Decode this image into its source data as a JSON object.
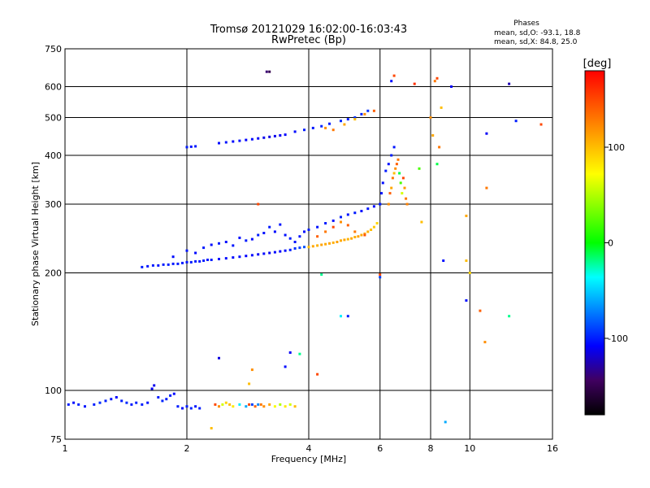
{
  "chart_data": {
    "type": "scatter",
    "title": "Tromsø 20121029 16:02:00-16:03:43",
    "subtitle": "RwPretec (Bp)",
    "xlabel": "Frequency [MHz]",
    "ylabel": "Stationary phase Virtual Height [km]",
    "x_scale": "log",
    "y_scale": "log",
    "xlim": [
      1,
      16
    ],
    "ylim": [
      75,
      750
    ],
    "x_ticks": [
      "1",
      "2",
      "4",
      "6",
      "8",
      "10",
      "16"
    ],
    "y_ticks": [
      "75",
      "100",
      "200",
      "300",
      "400",
      "500",
      "600",
      "750"
    ],
    "grid": true,
    "stats": {
      "heading": "Phases",
      "o_line": "mean, sd,O: -93.1, 18.8",
      "x_line": "mean, sd,X: 84.8, 25.0"
    },
    "colorbar": {
      "label": "[deg]",
      "range": [
        -180,
        180
      ],
      "ticks": [
        "100",
        "0",
        "-100"
      ],
      "tick_values": [
        100,
        0,
        -100
      ]
    },
    "series": [
      {
        "points": [
          [
            1.02,
            92,
            -100
          ],
          [
            1.05,
            93,
            -105
          ],
          [
            1.08,
            92,
            -98
          ],
          [
            1.12,
            91,
            -102
          ],
          [
            1.18,
            92,
            -100
          ],
          [
            1.22,
            93,
            -95
          ],
          [
            1.26,
            94,
            -100
          ],
          [
            1.3,
            95,
            -103
          ],
          [
            1.34,
            96,
            -108
          ],
          [
            1.38,
            94,
            -100
          ],
          [
            1.42,
            93,
            -97
          ],
          [
            1.46,
            92,
            -101
          ],
          [
            1.5,
            93,
            -99
          ],
          [
            1.55,
            92,
            -100
          ],
          [
            1.6,
            93,
            -103
          ],
          [
            1.64,
            101,
            -110
          ],
          [
            1.66,
            103,
            -112
          ],
          [
            1.7,
            96,
            -100
          ],
          [
            1.74,
            94,
            -98
          ],
          [
            1.78,
            95,
            -101
          ],
          [
            1.82,
            97,
            -100
          ],
          [
            1.86,
            98,
            -106
          ],
          [
            1.9,
            91,
            -100
          ],
          [
            1.95,
            90,
            -104
          ],
          [
            2.0,
            91,
            -100
          ],
          [
            2.05,
            90,
            -98
          ],
          [
            2.1,
            91,
            -102
          ],
          [
            2.15,
            90,
            -100
          ]
        ]
      },
      {
        "points": [
          [
            2.35,
            92,
            150
          ],
          [
            2.4,
            91,
            120
          ],
          [
            2.45,
            92,
            60
          ],
          [
            2.5,
            93,
            90
          ],
          [
            2.55,
            92,
            100
          ],
          [
            2.6,
            91,
            80
          ],
          [
            2.7,
            92,
            -40
          ],
          [
            2.8,
            91,
            -60
          ],
          [
            2.85,
            92,
            150
          ],
          [
            2.9,
            92,
            -90
          ],
          [
            2.95,
            91,
            140
          ],
          [
            3.0,
            92,
            -70
          ],
          [
            3.05,
            92,
            130
          ],
          [
            3.1,
            91,
            120
          ],
          [
            3.2,
            92,
            110
          ],
          [
            3.3,
            91,
            70
          ],
          [
            3.4,
            92,
            50
          ],
          [
            3.5,
            91,
            80
          ],
          [
            3.6,
            92,
            60
          ],
          [
            3.7,
            91,
            100
          ]
        ]
      },
      {
        "points": [
          [
            1.55,
            207,
            -100
          ],
          [
            1.6,
            208,
            -102
          ],
          [
            1.65,
            209,
            -101
          ],
          [
            1.7,
            209,
            -103
          ],
          [
            1.75,
            210,
            -100
          ],
          [
            1.8,
            210,
            -99
          ],
          [
            1.85,
            211,
            -102
          ],
          [
            1.9,
            211,
            -101
          ],
          [
            1.95,
            212,
            -100
          ],
          [
            2.0,
            213,
            -103
          ],
          [
            2.05,
            213,
            -101
          ],
          [
            2.1,
            214,
            -100
          ],
          [
            2.15,
            214,
            -102
          ],
          [
            2.2,
            215,
            -100
          ],
          [
            2.25,
            216,
            -101
          ],
          [
            2.3,
            216,
            -100
          ],
          [
            2.4,
            217,
            -103
          ],
          [
            2.5,
            218,
            -105
          ],
          [
            2.6,
            219,
            -106
          ],
          [
            2.7,
            220,
            -104
          ],
          [
            2.8,
            221,
            -108
          ],
          [
            2.9,
            222,
            -106
          ],
          [
            3.0,
            223,
            -110
          ],
          [
            3.1,
            224,
            -106
          ],
          [
            3.2,
            225,
            -111
          ],
          [
            3.3,
            226,
            -106
          ],
          [
            3.4,
            227,
            -108
          ],
          [
            3.5,
            228,
            -104
          ],
          [
            3.6,
            229,
            -100
          ],
          [
            3.7,
            231,
            -95
          ],
          [
            3.8,
            232,
            -90
          ],
          [
            3.9,
            233,
            -85
          ],
          [
            4.0,
            233,
            100
          ],
          [
            4.1,
            234,
            110
          ],
          [
            4.2,
            235,
            105
          ],
          [
            4.3,
            236,
            112
          ],
          [
            4.4,
            237,
            108
          ],
          [
            4.5,
            238,
            110
          ],
          [
            4.6,
            239,
            106
          ],
          [
            4.7,
            240,
            112
          ],
          [
            4.8,
            242,
            108
          ],
          [
            4.9,
            243,
            110
          ],
          [
            5.0,
            244,
            104
          ],
          [
            5.1,
            245,
            110
          ],
          [
            5.2,
            247,
            106
          ],
          [
            5.3,
            248,
            112
          ],
          [
            5.4,
            250,
            108
          ],
          [
            5.5,
            252,
            110
          ],
          [
            5.6,
            255,
            105
          ],
          [
            5.7,
            258,
            100
          ],
          [
            5.8,
            262,
            95
          ],
          [
            5.9,
            268,
            90
          ]
        ]
      },
      {
        "points": [
          [
            1.85,
            220,
            -105
          ],
          [
            2.0,
            228,
            -102
          ],
          [
            2.1,
            225,
            -106
          ],
          [
            2.2,
            232,
            -101
          ],
          [
            2.3,
            236,
            -105
          ],
          [
            2.4,
            238,
            -100
          ],
          [
            2.5,
            240,
            -104
          ],
          [
            2.6,
            235,
            -102
          ],
          [
            2.7,
            246,
            -105
          ],
          [
            2.8,
            242,
            -101
          ],
          [
            2.9,
            244,
            -106
          ],
          [
            3.0,
            250,
            -100
          ],
          [
            3.1,
            253,
            -103
          ],
          [
            3.2,
            262,
            -101
          ],
          [
            3.3,
            255,
            -105
          ],
          [
            3.4,
            266,
            -102
          ],
          [
            3.5,
            250,
            -104
          ],
          [
            3.6,
            245,
            -100
          ],
          [
            3.7,
            240,
            -103
          ],
          [
            3.8,
            248,
            -102
          ],
          [
            3.9,
            255,
            -105
          ],
          [
            4.0,
            258,
            -100
          ],
          [
            4.2,
            262,
            -103
          ],
          [
            4.4,
            268,
            -101
          ],
          [
            4.6,
            272,
            -104
          ],
          [
            4.8,
            278,
            -100
          ],
          [
            5.0,
            282,
            -103
          ],
          [
            5.2,
            285,
            -101
          ],
          [
            5.4,
            288,
            -104
          ],
          [
            5.6,
            292,
            -102
          ],
          [
            5.8,
            296,
            -105
          ],
          [
            6.0,
            300,
            -103
          ]
        ]
      },
      {
        "points": [
          [
            4.2,
            248,
            140
          ],
          [
            4.4,
            255,
            130
          ],
          [
            4.6,
            262,
            150
          ],
          [
            4.8,
            270,
            120
          ],
          [
            5.0,
            265,
            140
          ],
          [
            5.2,
            255,
            130
          ],
          [
            5.5,
            250,
            145
          ]
        ]
      },
      {
        "points": [
          [
            6.0,
            300,
            -100
          ],
          [
            6.05,
            320,
            -103
          ],
          [
            6.1,
            340,
            -105
          ],
          [
            6.2,
            365,
            -101
          ],
          [
            6.3,
            380,
            -104
          ],
          [
            6.4,
            400,
            -100
          ],
          [
            6.5,
            420,
            -102
          ]
        ]
      },
      {
        "points": [
          [
            6.3,
            300,
            120
          ],
          [
            6.35,
            320,
            140
          ],
          [
            6.4,
            330,
            110
          ],
          [
            6.45,
            350,
            130
          ],
          [
            6.5,
            360,
            100
          ],
          [
            6.55,
            370,
            120
          ],
          [
            6.6,
            380,
            140
          ],
          [
            6.65,
            390,
            130
          ],
          [
            6.7,
            360,
            -10
          ],
          [
            6.75,
            340,
            20
          ],
          [
            6.8,
            320,
            60
          ],
          [
            6.85,
            350,
            150
          ],
          [
            6.9,
            330,
            115
          ],
          [
            6.95,
            310,
            130
          ],
          [
            7.0,
            300,
            125
          ]
        ]
      },
      {
        "points": [
          [
            2.0,
            420,
            -100
          ],
          [
            2.05,
            421,
            -103
          ],
          [
            2.1,
            422,
            -101
          ],
          [
            2.4,
            430,
            -105
          ],
          [
            2.5,
            432,
            -103
          ],
          [
            2.6,
            434,
            -106
          ],
          [
            2.7,
            436,
            -104
          ],
          [
            2.8,
            438,
            -108
          ],
          [
            2.9,
            440,
            -106
          ],
          [
            3.0,
            442,
            -110
          ],
          [
            3.1,
            444,
            -112
          ],
          [
            3.2,
            446,
            -115
          ],
          [
            3.3,
            448,
            -112
          ],
          [
            3.4,
            450,
            -110
          ],
          [
            3.5,
            452,
            -108
          ],
          [
            3.7,
            460,
            -105
          ],
          [
            3.9,
            465,
            -100
          ],
          [
            4.1,
            470,
            -102
          ],
          [
            4.3,
            475,
            -98
          ],
          [
            4.5,
            482,
            -100
          ],
          [
            4.8,
            490,
            -97
          ],
          [
            5.0,
            495,
            -100
          ],
          [
            5.2,
            500,
            -96
          ],
          [
            5.4,
            510,
            -98
          ],
          [
            5.6,
            520,
            -95
          ]
        ]
      },
      {
        "points": [
          [
            4.4,
            470,
            120
          ],
          [
            4.6,
            465,
            130
          ],
          [
            4.9,
            480,
            110
          ],
          [
            5.2,
            495,
            100
          ],
          [
            5.5,
            510,
            120
          ],
          [
            5.8,
            520,
            140
          ]
        ]
      },
      {
        "points": [
          [
            3.15,
            655,
            -140
          ],
          [
            3.2,
            655,
            -150
          ],
          [
            6.4,
            620,
            -105
          ],
          [
            6.5,
            640,
            150
          ],
          [
            7.3,
            610,
            160
          ],
          [
            8.2,
            620,
            130
          ],
          [
            8.3,
            630,
            150
          ],
          [
            9.0,
            600,
            -110
          ],
          [
            12.5,
            610,
            -125
          ],
          [
            13.0,
            490,
            -100
          ],
          [
            15.0,
            480,
            150
          ],
          [
            11.0,
            455,
            -110
          ],
          [
            8.0,
            500,
            120
          ],
          [
            8.1,
            450,
            110
          ],
          [
            8.5,
            530,
            100
          ],
          [
            8.4,
            420,
            130
          ],
          [
            8.3,
            380,
            -10
          ],
          [
            7.5,
            370,
            20
          ],
          [
            7.6,
            270,
            100
          ],
          [
            9.8,
            280,
            110
          ],
          [
            9.8,
            215,
            100
          ],
          [
            10.0,
            200,
            90
          ],
          [
            8.6,
            215,
            -105
          ],
          [
            9.8,
            170,
            -105
          ],
          [
            10.6,
            160,
            140
          ],
          [
            12.5,
            155,
            -20
          ],
          [
            11.0,
            330,
            130
          ],
          [
            10.9,
            133,
            120
          ],
          [
            6.0,
            198,
            150
          ],
          [
            6.0,
            195,
            -90
          ],
          [
            4.3,
            198,
            -20
          ],
          [
            4.2,
            110,
            150
          ],
          [
            4.8,
            155,
            -40
          ],
          [
            5.0,
            155,
            -100
          ],
          [
            3.8,
            124,
            -20
          ],
          [
            3.6,
            125,
            -110
          ],
          [
            3.5,
            115,
            -105
          ],
          [
            2.9,
            113,
            120
          ],
          [
            2.85,
            104,
            100
          ],
          [
            2.4,
            121,
            -115
          ],
          [
            2.3,
            80,
            100
          ],
          [
            8.7,
            83,
            -60
          ],
          [
            3.0,
            300,
            150
          ]
        ]
      }
    ]
  }
}
